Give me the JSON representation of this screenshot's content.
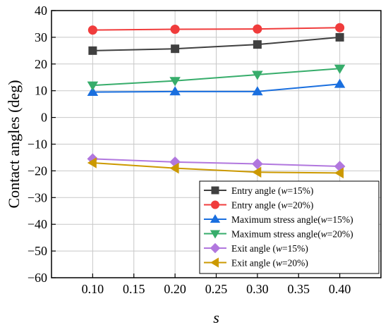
{
  "chart_data": {
    "type": "line",
    "xlabel": "s",
    "ylabel": "Contact angles (deg)",
    "x": [
      0.1,
      0.2,
      0.3,
      0.4
    ],
    "xlim": [
      0.05,
      0.45
    ],
    "ylim": [
      -60,
      40
    ],
    "xticks": [
      "0.10",
      "0.15",
      "0.20",
      "0.25",
      "0.30",
      "0.35",
      "0.40"
    ],
    "yticks": [
      "−60",
      "−50",
      "−40",
      "−30",
      "−20",
      "−10",
      "0",
      "10",
      "20",
      "30",
      "40"
    ],
    "grid": true,
    "legend_position": "bottom-right",
    "series": [
      {
        "name": "Entry angle  (w=15%)",
        "label_prefix": "Entry angle  (",
        "label_var": "w",
        "label_suffix": "=15%)",
        "color": "#404040",
        "marker": "square",
        "values": [
          25.0,
          25.7,
          27.3,
          30.0
        ]
      },
      {
        "name": "Entry angle  (w=20%)",
        "label_prefix": "Entry angle  (",
        "label_var": "w",
        "label_suffix": "=20%)",
        "color": "#f03c3c",
        "marker": "circle",
        "values": [
          32.7,
          33.0,
          33.1,
          33.6
        ]
      },
      {
        "name": "Maximum stress angle(w=15%)",
        "label_prefix": "Maximum stress angle(",
        "label_var": "w",
        "label_suffix": "=15%)",
        "color": "#1a6fdf",
        "marker": "triangle-up",
        "values": [
          9.5,
          9.7,
          9.7,
          12.5
        ]
      },
      {
        "name": "Maximum stress angle(w=20%)",
        "label_prefix": "Maximum stress angle(",
        "label_var": "w",
        "label_suffix": "=20%)",
        "color": "#37ad6b",
        "marker": "triangle-down",
        "values": [
          12.0,
          13.7,
          16.0,
          18.3
        ]
      },
      {
        "name": "Exit angle    (w=15%)",
        "label_prefix": "Exit angle    (",
        "label_var": "w",
        "label_suffix": "=15%)",
        "color": "#b177de",
        "marker": "diamond",
        "values": [
          -15.5,
          -16.7,
          -17.4,
          -18.3
        ]
      },
      {
        "name": "Exit angle    (w=20%)",
        "label_prefix": "Exit angle    (",
        "label_var": "w",
        "label_suffix": "=20%)",
        "color": "#cc9900",
        "marker": "triangle-left",
        "values": [
          -17.0,
          -19.0,
          -20.5,
          -20.8
        ]
      }
    ]
  }
}
